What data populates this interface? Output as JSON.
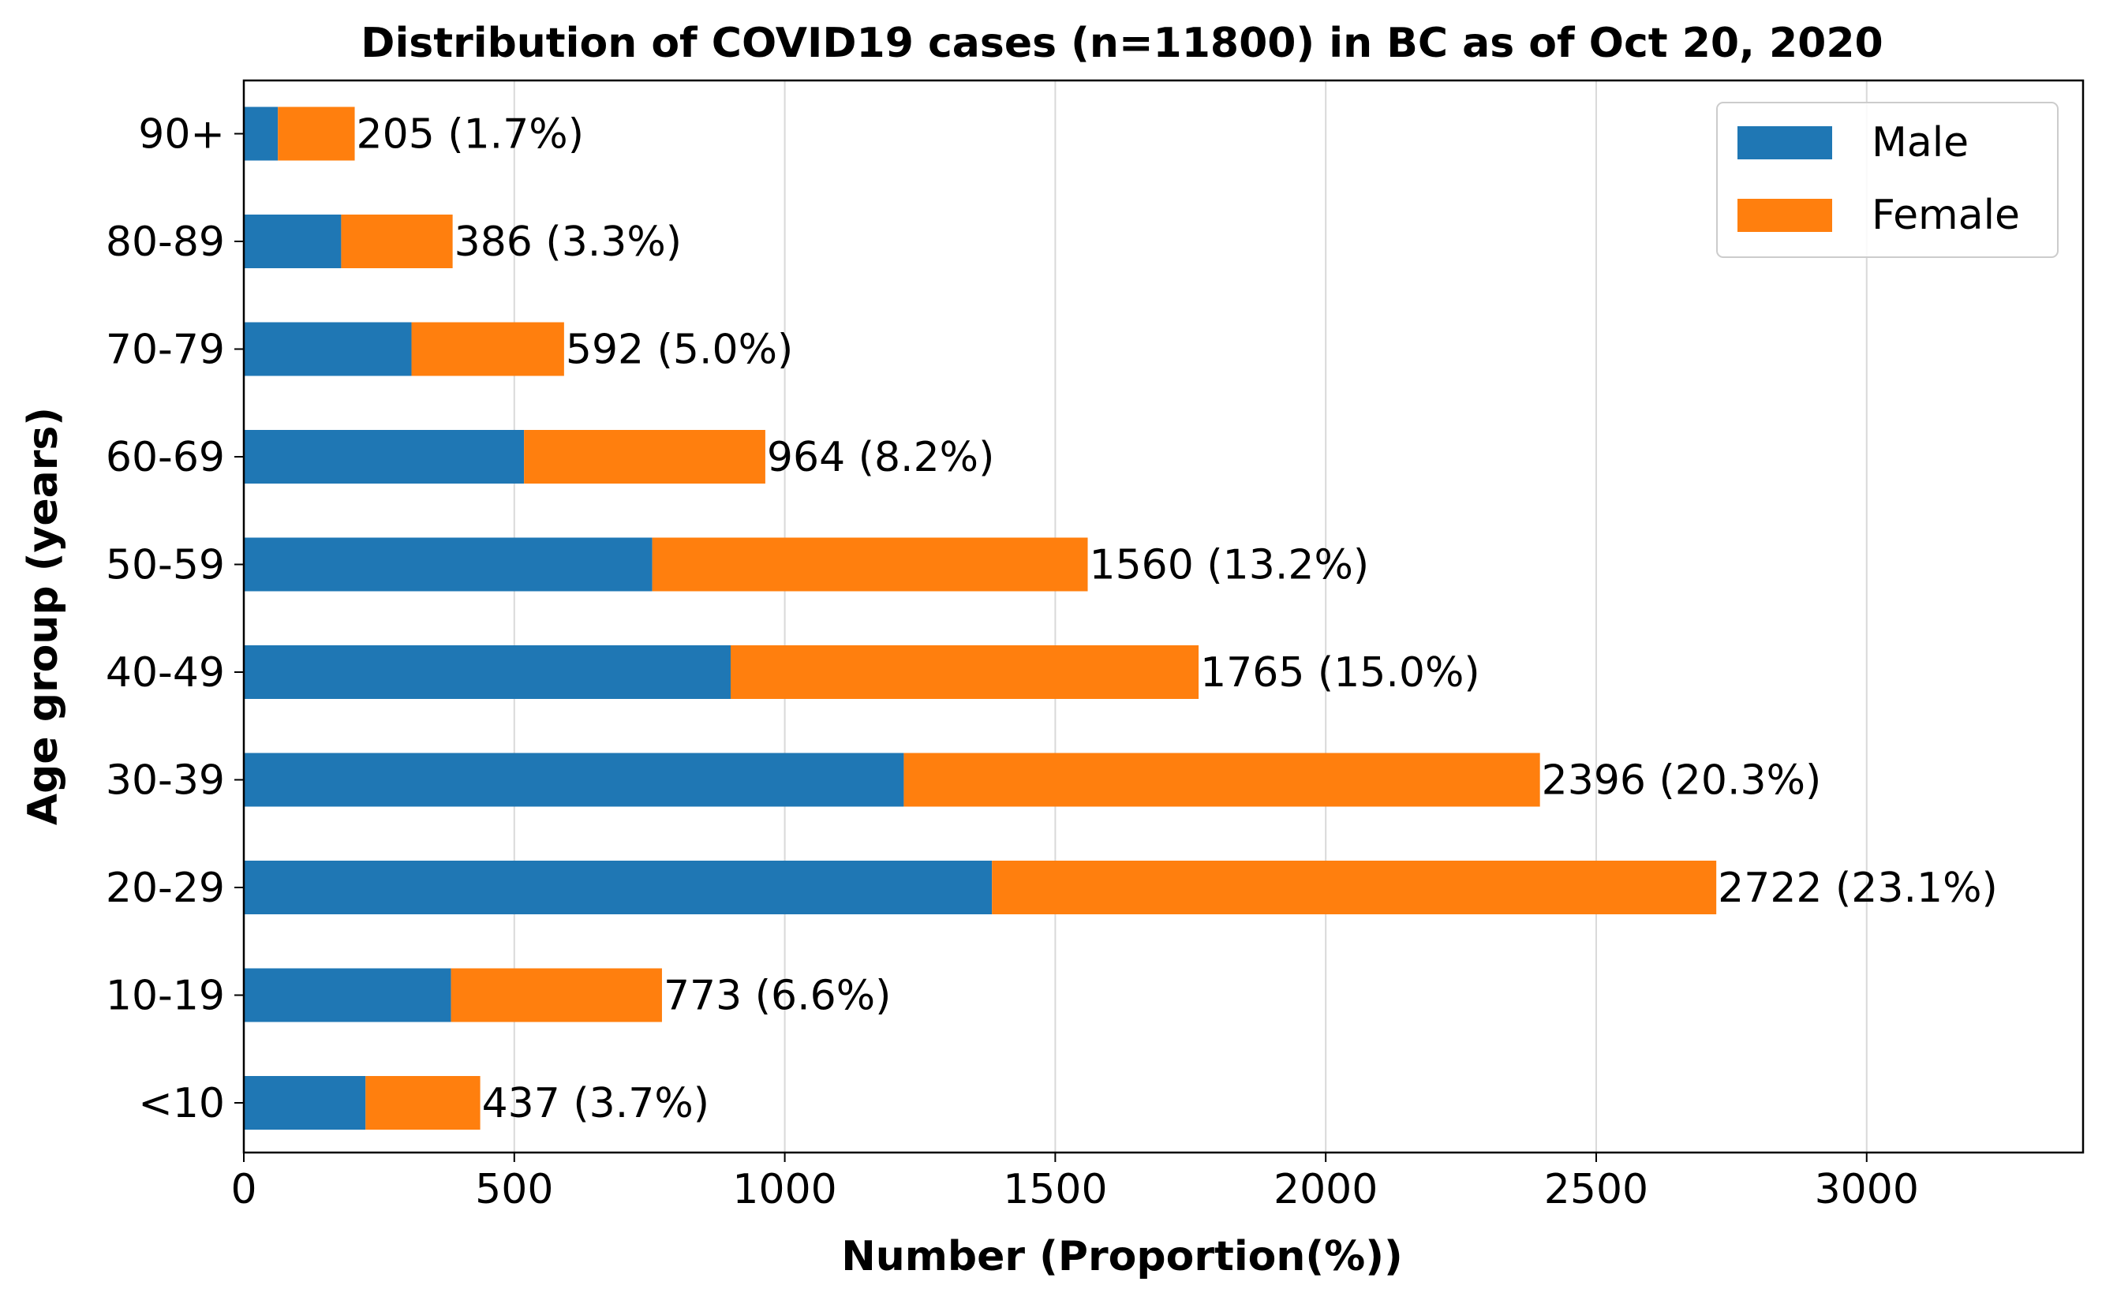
{
  "chart_data": {
    "type": "bar",
    "orientation": "horizontal",
    "stacked": true,
    "title": "Distribution of COVID19 cases (n=11800) in BC as of Oct 20, 2020",
    "xlabel": "Number (Proportion(%))",
    "ylabel": "Age group (years)",
    "categories": [
      "<10",
      "10-19",
      "20-29",
      "30-39",
      "40-49",
      "50-59",
      "60-69",
      "70-79",
      "80-89",
      "90+"
    ],
    "series": [
      {
        "name": "Male",
        "color": "#1f77b4",
        "values": [
          225,
          383,
          1383,
          1220,
          900,
          755,
          518,
          310,
          180,
          63
        ]
      },
      {
        "name": "Female",
        "color": "#ff7f0e",
        "values": [
          212,
          390,
          1339,
          1176,
          865,
          805,
          446,
          282,
          206,
          142
        ]
      }
    ],
    "data_labels": [
      "437 (3.7%)",
      "773 (6.6%)",
      "2722 (23.1%)",
      "2396 (20.3%)",
      "1765 (15.0%)",
      "1560 (13.2%)",
      "964 (8.2%)",
      "592 (5.0%)",
      "386 (3.3%)",
      "205 (1.7%)"
    ],
    "xlim": [
      0,
      3400
    ],
    "xticks": [
      0,
      500,
      1000,
      1500,
      2000,
      2500,
      3000
    ],
    "grid": "vertical",
    "legend_position": "top-right"
  }
}
